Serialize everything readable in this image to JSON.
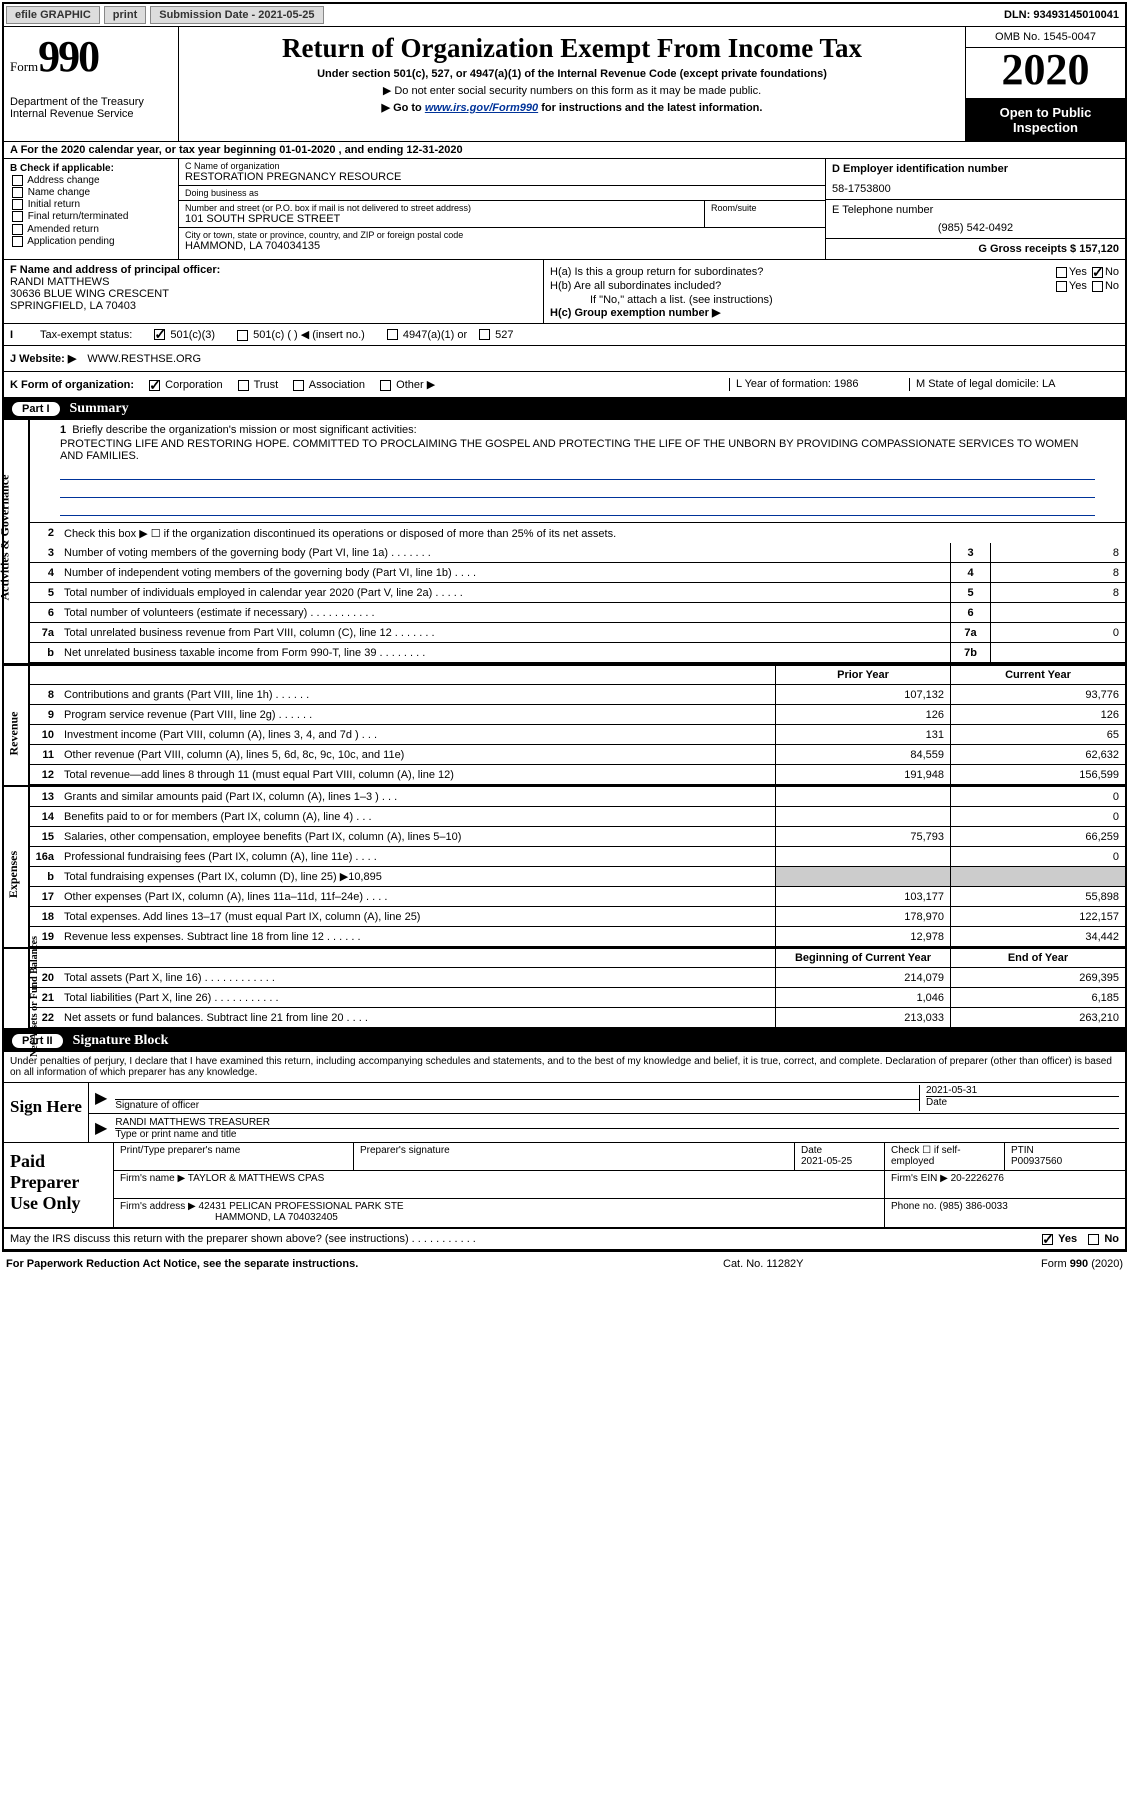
{
  "topbar": {
    "efile": "efile GRAPHIC",
    "print": "print",
    "subdate_label": "Submission Date - 2021-05-25",
    "dln": "DLN: 93493145010041"
  },
  "header": {
    "form_prefix": "Form",
    "form_number": "990",
    "dept": "Department of the Treasury\nInternal Revenue Service",
    "title": "Return of Organization Exempt From Income Tax",
    "sub1": "Under section 501(c), 527, or 4947(a)(1) of the Internal Revenue Code (except private foundations)",
    "sub2": "▶ Do not enter social security numbers on this form as it may be made public.",
    "sub3_pre": "▶ Go to ",
    "sub3_link": "www.irs.gov/Form990",
    "sub3_post": " for instructions and the latest information.",
    "omb": "OMB No. 1545-0047",
    "year": "2020",
    "inspect": "Open to Public Inspection"
  },
  "rowA": "A For the 2020 calendar year, or tax year beginning 01-01-2020    , and ending 12-31-2020",
  "colB": {
    "label": "B Check if applicable:",
    "opts": [
      "Address change",
      "Name change",
      "Initial return",
      "Final return/terminated",
      "Amended return",
      "Application pending"
    ]
  },
  "colC": {
    "name_label": "C Name of organization",
    "name": "RESTORATION PREGNANCY RESOURCE",
    "dba_label": "Doing business as",
    "dba": "",
    "addr_label": "Number and street (or P.O. box if mail is not delivered to street address)",
    "addr": "101 SOUTH SPRUCE STREET",
    "room_label": "Room/suite",
    "city_label": "City or town, state or province, country, and ZIP or foreign postal code",
    "city": "HAMMOND, LA  704034135",
    "officer_label": "F Name and address of principal officer:",
    "officer": "RANDI MATTHEWS\n30636 BLUE WING CRESCENT\nSPRINGFIELD, LA  70403"
  },
  "colD": {
    "ein_label": "D Employer identification number",
    "ein": "58-1753800",
    "tel_label": "E Telephone number",
    "tel": "(985) 542-0492",
    "gross_label": "G Gross receipts $ 157,120"
  },
  "colH": {
    "ha": "H(a)  Is this a group return for subordinates?",
    "hb": "H(b)  Are all subordinates included?",
    "hb_note": "If \"No,\" attach a list. (see instructions)",
    "hc": "H(c)  Group exemption number ▶"
  },
  "rowI": {
    "label": "Tax-exempt status:",
    "opts": [
      "501(c)(3)",
      "501(c) (  ) ◀ (insert no.)",
      "4947(a)(1) or",
      "527"
    ]
  },
  "rowJ": {
    "label": "J    Website: ▶",
    "val": "WWW.RESTHSE.ORG"
  },
  "rowK": {
    "label": "K Form of organization:",
    "opts": [
      "Corporation",
      "Trust",
      "Association",
      "Other ▶"
    ],
    "l_label": "L Year of formation: 1986",
    "m_label": "M State of legal domicile: LA"
  },
  "part1": {
    "num": "Part I",
    "title": "Summary",
    "q1": "Briefly describe the organization's mission or most significant activities:",
    "mission": "PROTECTING LIFE AND RESTORING HOPE. COMMITTED TO PROCLAIMING THE GOSPEL AND PROTECTING THE LIFE OF THE UNBORN BY PROVIDING COMPASSIONATE SERVICES TO WOMEN AND FAMILIES.",
    "q2": "Check this box ▶ ☐  if the organization discontinued its operations or disposed of more than 25% of its net assets."
  },
  "sidebar": {
    "gov": "Activities & Governance",
    "rev": "Revenue",
    "exp": "Expenses",
    "net": "Net Assets or Fund Balances"
  },
  "lines_gov": [
    {
      "n": "3",
      "d": "Number of voting members of the governing body (Part VI, line 1a)  .   .   .   .   .   .   .",
      "b": "3",
      "v": "8"
    },
    {
      "n": "4",
      "d": "Number of independent voting members of the governing body (Part VI, line 1b)  .   .   .   .",
      "b": "4",
      "v": "8"
    },
    {
      "n": "5",
      "d": "Total number of individuals employed in calendar year 2020 (Part V, line 2a)  .   .   .   .   .",
      "b": "5",
      "v": "8"
    },
    {
      "n": "6",
      "d": "Total number of volunteers (estimate if necessary)    .    .    .    .    .    .    .    .    .    .    .",
      "b": "6",
      "v": ""
    },
    {
      "n": "7a",
      "d": "Total unrelated business revenue from Part VIII, column (C), line 12  .   .   .   .   .   .   .",
      "b": "7a",
      "v": "0"
    },
    {
      "n": "b",
      "d": "Net unrelated business taxable income from Form 990-T, line 39  .   .   .   .   .   .   .   .",
      "b": "7b",
      "v": ""
    }
  ],
  "hdr_py": "Prior Year",
  "hdr_cy": "Current Year",
  "lines_rev": [
    {
      "n": "8",
      "d": "Contributions and grants (Part VIII, line 1h)  .    .    .    .    .    .",
      "py": "107,132",
      "cy": "93,776"
    },
    {
      "n": "9",
      "d": "Program service revenue (Part VIII, line 2g)  .    .    .    .    .    .",
      "py": "126",
      "cy": "126"
    },
    {
      "n": "10",
      "d": "Investment income (Part VIII, column (A), lines 3, 4, and 7d )  .    .    .",
      "py": "131",
      "cy": "65"
    },
    {
      "n": "11",
      "d": "Other revenue (Part VIII, column (A), lines 5, 6d, 8c, 9c, 10c, and 11e)",
      "py": "84,559",
      "cy": "62,632"
    },
    {
      "n": "12",
      "d": "Total revenue—add lines 8 through 11 (must equal Part VIII, column (A), line 12)",
      "py": "191,948",
      "cy": "156,599"
    }
  ],
  "lines_exp": [
    {
      "n": "13",
      "d": "Grants and similar amounts paid (Part IX, column (A), lines 1–3 )  .    .    .",
      "py": "",
      "cy": "0"
    },
    {
      "n": "14",
      "d": "Benefits paid to or for members (Part IX, column (A), line 4)  .    .    .",
      "py": "",
      "cy": "0"
    },
    {
      "n": "15",
      "d": "Salaries, other compensation, employee benefits (Part IX, column (A), lines 5–10)",
      "py": "75,793",
      "cy": "66,259"
    },
    {
      "n": "16a",
      "d": "Professional fundraising fees (Part IX, column (A), line 11e)  .    .    .    .",
      "py": "",
      "cy": "0"
    },
    {
      "n": "b",
      "d": "Total fundraising expenses (Part IX, column (D), line 25) ▶10,895",
      "py": "shade",
      "cy": "shade"
    },
    {
      "n": "17",
      "d": "Other expenses (Part IX, column (A), lines 11a–11d, 11f–24e)  .    .    .    .",
      "py": "103,177",
      "cy": "55,898"
    },
    {
      "n": "18",
      "d": "Total expenses. Add lines 13–17 (must equal Part IX, column (A), line 25)",
      "py": "178,970",
      "cy": "122,157"
    },
    {
      "n": "19",
      "d": "Revenue less expenses. Subtract line 18 from line 12  .    .    .    .    .    .",
      "py": "12,978",
      "cy": "34,442"
    }
  ],
  "hdr_by": "Beginning of Current Year",
  "hdr_ey": "End of Year",
  "lines_net": [
    {
      "n": "20",
      "d": "Total assets (Part X, line 16)  .    .    .    .    .    .    .    .    .    .    .    .",
      "py": "214,079",
      "cy": "269,395"
    },
    {
      "n": "21",
      "d": "Total liabilities (Part X, line 26)  .    .    .    .    .    .    .    .    .    .    .",
      "py": "1,046",
      "cy": "6,185"
    },
    {
      "n": "22",
      "d": "Net assets or fund balances. Subtract line 21 from line 20  .    .    .    .",
      "py": "213,033",
      "cy": "263,210"
    }
  ],
  "part2": {
    "num": "Part II",
    "title": "Signature Block",
    "intro": "Under penalties of perjury, I declare that I have examined this return, including accompanying schedules and statements, and to the best of my knowledge and belief, it is true, correct, and complete. Declaration of preparer (other than officer) is based on all information of which preparer has any knowledge."
  },
  "sign": {
    "label": "Sign Here",
    "sig_officer": "Signature of officer",
    "date_label": "Date",
    "date": "2021-05-31",
    "name": "RANDI MATTHEWS  TREASURER",
    "name_label": "Type or print name and title"
  },
  "prep": {
    "label": "Paid Preparer Use Only",
    "col1": "Print/Type preparer's name",
    "col2": "Preparer's signature",
    "col3": "Date",
    "date": "2021-05-25",
    "col4": "Check ☐ if self-employed",
    "col5_label": "PTIN",
    "ptin": "P00937560",
    "firm_label": "Firm's name    ▶",
    "firm": "TAYLOR & MATTHEWS CPAS",
    "ein_label": "Firm's EIN ▶",
    "ein": "20-2226276",
    "addr_label": "Firm's address ▶",
    "addr": "42431 PELICAN PROFESSIONAL PARK STE",
    "city": "HAMMOND, LA  704032405",
    "phone_label": "Phone no.",
    "phone": "(985) 386-0033"
  },
  "bottom": {
    "q": "May the IRS discuss this return with the preparer shown above? (see instructions)  .    .    .    .    .    .    .    .    .    .    .",
    "yes": "Yes",
    "no": "No"
  },
  "footer": {
    "l": "For Paperwork Reduction Act Notice, see the separate instructions.",
    "c": "Cat. No. 11282Y",
    "r": "Form 990 (2020)"
  }
}
